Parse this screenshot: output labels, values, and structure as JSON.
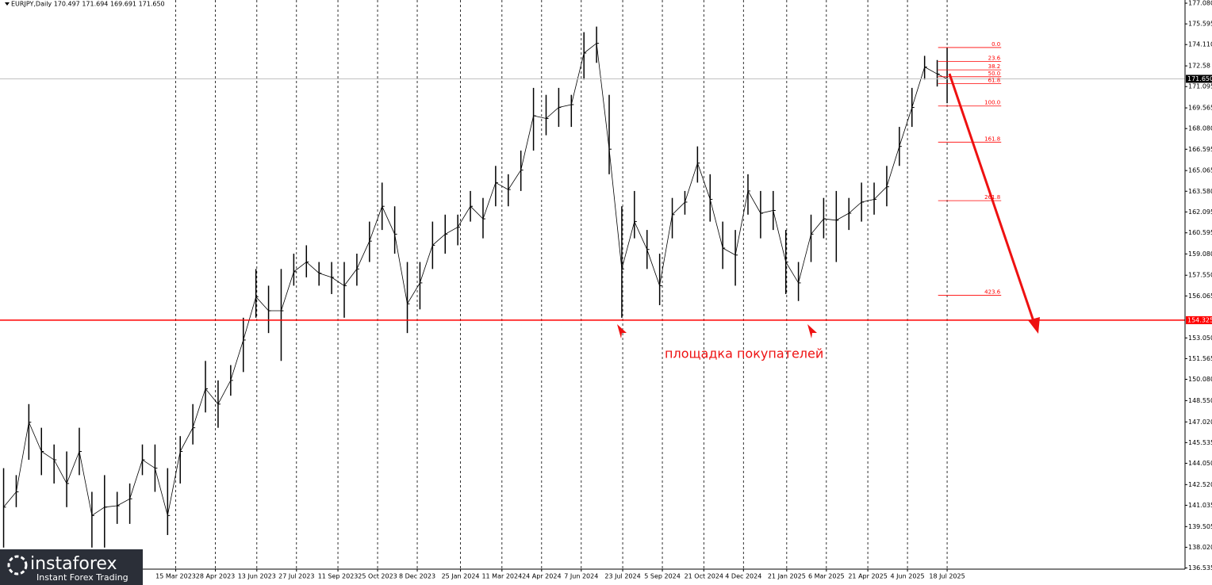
{
  "chart_data": {
    "type": "ohlc",
    "title": "EURJPY,Daily  170.497 171.694 169.691 171.650",
    "x": [
      "5 Sep 2022",
      "19 Sep 2022",
      "3 Oct 2022",
      "17 Oct 2022",
      "31 Oct 2022",
      "14 Nov 2022",
      "28 Nov 2022",
      "12 Dec 2022",
      "26 Dec 2022",
      "9 Jan 2023",
      "23 Jan 2023",
      "6 Feb 2023",
      "20 Feb 2023",
      "6 Mar 2023",
      "20 Mar 2023",
      "3 Apr 2023",
      "17 Apr 2023",
      "1 May 2023",
      "15 May 2023",
      "29 May 2023",
      "12 Jun 2023",
      "26 Jun 2023",
      "10 Jul 2023",
      "24 Jul 2023",
      "7 Aug 2023",
      "21 Aug 2023",
      "4 Sep 2023",
      "18 Sep 2023",
      "2 Oct 2023",
      "16 Oct 2023",
      "30 Oct 2023",
      "13 Nov 2023",
      "27 Nov 2023",
      "11 Dec 2023",
      "25 Dec 2023",
      "8 Jan 2024",
      "22 Jan 2024",
      "5 Feb 2024",
      "19 Feb 2024",
      "4 Mar 2024",
      "18 Mar 2024",
      "1 Apr 2024",
      "15 Apr 2024",
      "29 Apr 2024",
      "13 May 2024",
      "27 May 2024",
      "10 Jun 2024",
      "24 Jun 2024",
      "8 Jul 2024",
      "22 Jul 2024",
      "5 Aug 2024",
      "19 Aug 2024",
      "2 Sep 2024",
      "16 Sep 2024",
      "30 Sep 2024",
      "14 Oct 2024",
      "28 Oct 2024",
      "11 Nov 2024",
      "25 Nov 2024",
      "9 Dec 2024",
      "23 Dec 2024",
      "6 Jan 2025",
      "20 Jan 2025",
      "3 Feb 2025",
      "17 Feb 2025",
      "3 Mar 2025",
      "17 Mar 2025",
      "31 Mar 2025",
      "14 Apr 2025",
      "28 Apr 2025",
      "12 May 2025",
      "26 May 2025",
      "9 Jun 2025",
      "23 Jun 2025",
      "7 Jul 2025",
      "18 Jul 2025"
    ],
    "high": [
      143.7,
      143.2,
      148.3,
      146.6,
      145.4,
      144.9,
      146.6,
      142.0,
      143.2,
      142.0,
      142.6,
      145.4,
      145.4,
      143.7,
      146.0,
      148.3,
      151.4,
      150.0,
      151.1,
      154.5,
      158.0,
      156.8,
      158.0,
      159.1,
      159.7,
      158.5,
      158.5,
      158.5,
      159.1,
      161.4,
      164.2,
      162.5,
      158.5,
      158.5,
      161.4,
      161.9,
      161.9,
      163.6,
      163.1,
      165.4,
      164.8,
      166.5,
      171.0,
      170.5,
      171.0,
      170.5,
      175.0,
      175.4,
      170.5,
      162.5,
      163.6,
      160.8,
      159.1,
      163.1,
      163.6,
      166.8,
      164.8,
      161.4,
      160.8,
      164.8,
      163.6,
      163.6,
      160.8,
      158.5,
      161.9,
      163.1,
      163.6,
      163.1,
      164.2,
      164.2,
      165.4,
      168.2,
      171.0,
      173.3,
      173.0,
      173.9
    ],
    "low": [
      138.0,
      140.9,
      144.3,
      143.2,
      142.6,
      140.9,
      143.2,
      138.0,
      138.0,
      139.7,
      139.7,
      143.2,
      142.0,
      138.9,
      142.6,
      145.4,
      147.7,
      146.6,
      148.9,
      150.6,
      154.5,
      153.4,
      151.4,
      156.8,
      157.4,
      156.8,
      156.2,
      154.5,
      156.8,
      158.5,
      160.8,
      159.1,
      153.4,
      155.1,
      158.0,
      159.1,
      159.7,
      161.4,
      160.2,
      162.5,
      162.5,
      163.6,
      166.5,
      167.6,
      168.2,
      168.2,
      171.6,
      172.8,
      164.8,
      154.5,
      160.2,
      158.0,
      155.4,
      160.2,
      161.9,
      164.2,
      161.4,
      158.0,
      156.8,
      161.9,
      160.2,
      160.8,
      156.2,
      155.7,
      158.5,
      160.2,
      158.5,
      160.8,
      161.4,
      161.9,
      162.5,
      165.4,
      168.2,
      171.6,
      171.1,
      169.9
    ],
    "close": [
      140.9,
      142.0,
      147.0,
      144.9,
      144.3,
      142.6,
      144.9,
      140.3,
      140.9,
      141.0,
      141.5,
      144.3,
      143.7,
      140.3,
      144.9,
      146.6,
      149.4,
      148.3,
      150.0,
      152.9,
      156.0,
      155.0,
      155.0,
      157.8,
      158.5,
      157.7,
      157.4,
      156.8,
      158.0,
      160.0,
      162.5,
      160.5,
      155.5,
      157.0,
      159.7,
      160.5,
      161.0,
      162.5,
      161.6,
      164.2,
      163.7,
      165.1,
      169.0,
      168.8,
      169.6,
      169.8,
      173.5,
      174.2,
      166.6,
      158.0,
      161.4,
      159.4,
      156.8,
      161.9,
      162.8,
      165.6,
      163.0,
      159.5,
      159.0,
      163.6,
      162.0,
      162.2,
      158.5,
      157.0,
      160.5,
      161.6,
      161.5,
      162.0,
      162.8,
      163.0,
      163.9,
      166.8,
      169.6,
      172.5,
      172.0,
      171.65
    ],
    "color": "#000000",
    "xlim": [
      "1 Sep 2022",
      "8 Apr 2026"
    ],
    "xticks": [
      "15 Mar 2023",
      "28 Apr 2023",
      "13 Jun 2023",
      "27 Jul 2023",
      "11 Sep 2023",
      "25 Oct 2023",
      "8 Dec 2023",
      "25 Jan 2024",
      "11 Mar 2024",
      "24 Apr 2024",
      "7 Jun 2024",
      "23 Jul 2024",
      "5 Sep 2024",
      "21 Oct 2024",
      "4 Dec 2024",
      "21 Jan 2025",
      "6 Mar 2025",
      "21 Apr 2025",
      "4 Jun 2025",
      "18 Jul 2025"
    ],
    "ylim": [
      136.45,
      177.31
    ],
    "yticks": [
      {
        "value": 177.08,
        "label": "177.080"
      },
      175.595,
      {
        "value": 174.11,
        "label": "174.110"
      },
      172.58,
      171.095,
      169.565,
      {
        "value": 168.08,
        "label": "168.080"
      },
      166.595,
      165.065,
      {
        "value": 163.58,
        "label": "163.580"
      },
      162.095,
      160.595,
      {
        "value": 159.08,
        "label": "159.080"
      },
      {
        "value": 157.55,
        "label": "157.550"
      },
      156.065,
      {
        "value": 153.05,
        "label": "153.050"
      },
      151.565,
      {
        "value": 150.08,
        "label": "150.080"
      },
      {
        "value": 148.55,
        "label": "148.550"
      },
      {
        "value": 147.02,
        "label": "147.020"
      },
      145.535,
      {
        "value": 144.05,
        "label": "144.050"
      },
      {
        "value": 142.52,
        "label": "142.520"
      },
      141.035,
      139.505,
      {
        "value": 138.02,
        "label": "138.020"
      },
      136.535
    ],
    "grid": true,
    "current_price": {
      "value": 171.65,
      "label": "171.650",
      "color": "#c0c0c0"
    },
    "support": {
      "value": 154.325,
      "label": "154.325",
      "color": "#ff0000"
    },
    "annotation": "площадка покупателей",
    "fibonacci": {
      "high": 173.9,
      "low": 169.7,
      "x": [
        "8 Jul 2025",
        "16 Sep 2025"
      ],
      "color": "#ff0000",
      "levels": [
        {
          "value": 0,
          "label": "0.0"
        },
        23.6,
        38.2,
        {
          "value": 50,
          "label": "50.0"
        },
        61.8,
        {
          "value": 100,
          "label": "100.0"
        },
        161.8,
        261.8,
        423.6
      ]
    },
    "watermark": {
      "name": "instaforex",
      "tagline": "Instant Forex Trading"
    }
  }
}
